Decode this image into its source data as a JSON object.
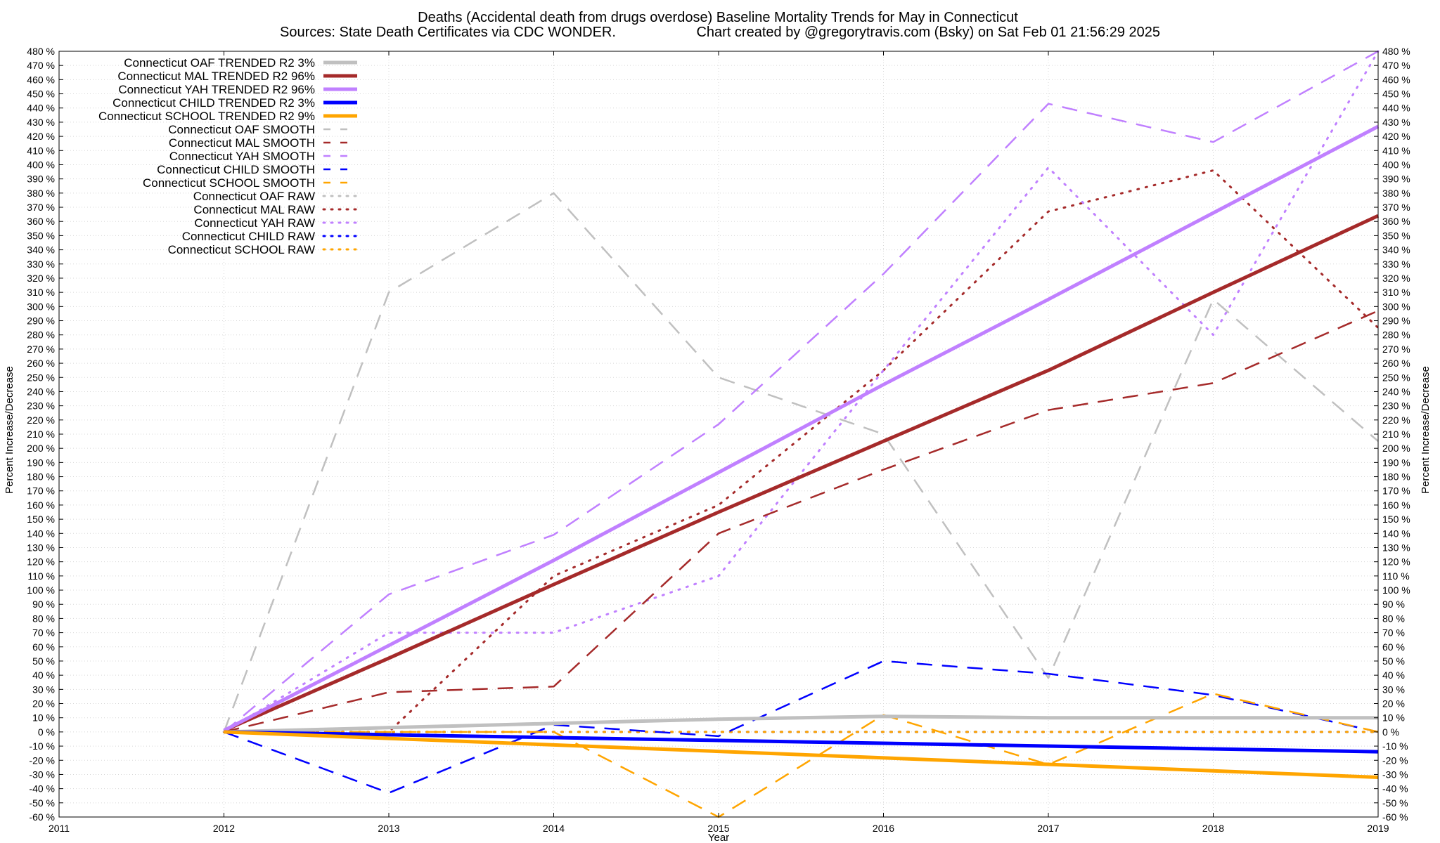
{
  "chart_data": {
    "type": "line",
    "title": "Deaths (Accidental death from drugs overdose)  Baseline Mortality Trends for May in Connecticut",
    "subtitle_left": "Sources: State Death Certificates via CDC WONDER.",
    "subtitle_right": "Chart created by @gregorytravis.com (Bsky) on Sat Feb 01 21:56:29 2025",
    "xlabel": "Year",
    "ylabel_left": "Percent Increase/Decrease",
    "ylabel_right": "Percent Increase/Decrease",
    "xlim": [
      2011,
      2019
    ],
    "ylim": [
      -60,
      480
    ],
    "x_ticks": [
      "2011",
      "2012",
      "2013",
      "2014",
      "2015",
      "2016",
      "2017",
      "2018",
      "2019"
    ],
    "y_ticks": [
      "-60 %",
      "-50 %",
      "-40 %",
      "-30 %",
      "-20 %",
      "-10 %",
      "0 %",
      "10 %",
      "20 %",
      "30 %",
      "40 %",
      "50 %",
      "60 %",
      "70 %",
      "80 %",
      "90 %",
      "100 %",
      "110 %",
      "120 %",
      "130 %",
      "140 %",
      "150 %",
      "160 %",
      "170 %",
      "180 %",
      "190 %",
      "200 %",
      "210 %",
      "220 %",
      "230 %",
      "240 %",
      "250 %",
      "260 %",
      "270 %",
      "280 %",
      "290 %",
      "300 %",
      "310 %",
      "320 %",
      "330 %",
      "340 %",
      "350 %",
      "360 %",
      "370 %",
      "380 %",
      "390 %",
      "400 %",
      "410 %",
      "420 %",
      "430 %",
      "440 %",
      "450 %",
      "460 %",
      "470 %",
      "480 %"
    ],
    "grid": true,
    "legend_position": "top-left",
    "series": [
      {
        "name": "Connecticut OAF TRENDED R2   3%",
        "style": "solid",
        "color": "#c0c0c0",
        "x": [
          2012,
          2013,
          2014,
          2015,
          2016,
          2017,
          2018,
          2019
        ],
        "values": [
          0,
          3,
          6,
          9,
          11,
          10,
          10,
          10
        ]
      },
      {
        "name": "Connecticut MAL TRENDED R2  96%",
        "style": "solid",
        "color": "#a52a2a",
        "x": [
          2012,
          2013,
          2014,
          2015,
          2016,
          2017,
          2018,
          2019
        ],
        "values": [
          1,
          52,
          104,
          155,
          205,
          255,
          310,
          364
        ]
      },
      {
        "name": "Connecticut YAH TRENDED R2  96%",
        "style": "solid",
        "color": "#c080ff",
        "x": [
          2012,
          2013,
          2014,
          2015,
          2016,
          2017,
          2018,
          2019
        ],
        "values": [
          1,
          61,
          121,
          183,
          245,
          305,
          366,
          427
        ]
      },
      {
        "name": "Connecticut CHILD TRENDED R2   3%",
        "style": "solid",
        "color": "#0000ff",
        "x": [
          2012,
          2019
        ],
        "values": [
          0,
          -14
        ]
      },
      {
        "name": "Connecticut SCHOOL TRENDED R2   9%",
        "style": "solid",
        "color": "#ffa500",
        "x": [
          2012,
          2019
        ],
        "values": [
          0,
          -32
        ]
      },
      {
        "name": "Connecticut OAF SMOOTH",
        "style": "dashed",
        "color": "#c0c0c0",
        "x": [
          2012,
          2013,
          2014,
          2015,
          2016,
          2017,
          2018,
          2019
        ],
        "values": [
          0,
          310,
          380,
          250,
          210,
          38,
          305,
          205
        ]
      },
      {
        "name": "Connecticut MAL SMOOTH",
        "style": "dashed",
        "color": "#a52a2a",
        "x": [
          2012,
          2013,
          2014,
          2015,
          2016,
          2017,
          2018,
          2019
        ],
        "values": [
          0,
          28,
          32,
          140,
          185,
          227,
          246,
          297
        ]
      },
      {
        "name": "Connecticut YAH SMOOTH",
        "style": "dashed",
        "color": "#c080ff",
        "x": [
          2012,
          2013,
          2014,
          2015,
          2016,
          2017,
          2018,
          2019
        ],
        "values": [
          0,
          97,
          139,
          217,
          323,
          443,
          416,
          482
        ]
      },
      {
        "name": "Connecticut CHILD SMOOTH",
        "style": "dashed",
        "color": "#0000ff",
        "x": [
          2012,
          2013,
          2014,
          2015,
          2016,
          2017,
          2018,
          2019
        ],
        "values": [
          0,
          -43,
          5,
          -3,
          50,
          41,
          26,
          0
        ]
      },
      {
        "name": "Connecticut SCHOOL SMOOTH",
        "style": "dashed",
        "color": "#ffa500",
        "x": [
          2012,
          2013,
          2014,
          2015,
          2016,
          2017,
          2018,
          2019
        ],
        "values": [
          0,
          0,
          0,
          -62,
          12,
          -23,
          27,
          0
        ]
      },
      {
        "name": "Connecticut OAF RAW",
        "style": "dotted",
        "color": "#c0c0c0",
        "x": [
          2012,
          2013,
          2014,
          2015,
          2016,
          2017,
          2018,
          2019
        ],
        "values": [
          0,
          0,
          0,
          0,
          0,
          0,
          0,
          0
        ]
      },
      {
        "name": "Connecticut MAL RAW",
        "style": "dotted",
        "color": "#a52a2a",
        "x": [
          2012,
          2013,
          2014,
          2015,
          2016,
          2017,
          2018,
          2019
        ],
        "values": [
          0,
          0,
          110,
          160,
          255,
          367,
          396,
          285
        ]
      },
      {
        "name": "Connecticut YAH RAW",
        "style": "dotted",
        "color": "#c080ff",
        "x": [
          2012,
          2013,
          2014,
          2015,
          2016,
          2017,
          2018,
          2019
        ],
        "values": [
          0,
          70,
          70,
          110,
          255,
          398,
          280,
          482
        ]
      },
      {
        "name": "Connecticut CHILD RAW",
        "style": "dotted",
        "color": "#0000ff",
        "x": [
          2012,
          2019
        ],
        "values": [
          0,
          0
        ]
      },
      {
        "name": "Connecticut SCHOOL RAW",
        "style": "dotted",
        "color": "#ffa500",
        "x": [
          2012,
          2019
        ],
        "values": [
          0,
          0
        ]
      }
    ]
  }
}
